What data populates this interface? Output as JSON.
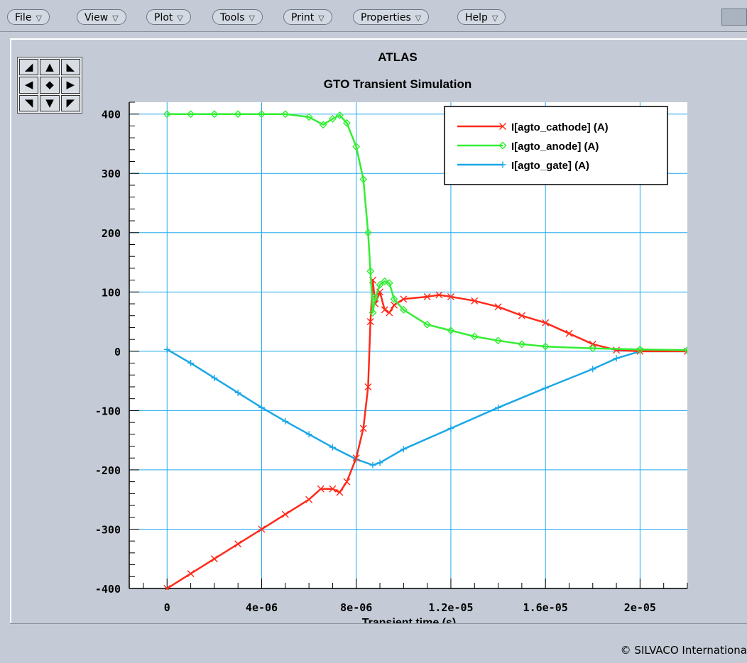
{
  "menu": [
    {
      "label": "File",
      "name": "file"
    },
    {
      "label": "View",
      "name": "view"
    },
    {
      "label": "Plot",
      "name": "plot"
    },
    {
      "label": "Tools",
      "name": "tools"
    },
    {
      "label": "Print",
      "name": "print"
    },
    {
      "label": "Properties",
      "name": "properties"
    },
    {
      "label": "Help",
      "name": "help"
    }
  ],
  "menu_arrow": "▽",
  "nav_pad": [
    {
      "glyph": "◢",
      "name": "pan-up-left-icon"
    },
    {
      "glyph": "▲",
      "name": "pan-up-icon"
    },
    {
      "glyph": "◣",
      "name": "pan-up-right-icon"
    },
    {
      "glyph": "◀",
      "name": "pan-left-icon"
    },
    {
      "glyph": "◆",
      "name": "pan-center-icon"
    },
    {
      "glyph": "▶",
      "name": "pan-right-icon"
    },
    {
      "glyph": "◥",
      "name": "pan-down-left-icon"
    },
    {
      "glyph": "▼",
      "name": "pan-down-icon"
    },
    {
      "glyph": "◤",
      "name": "pan-down-right-icon"
    }
  ],
  "status": {
    "copyright": "© SILVACO Internationa"
  },
  "colors": {
    "cathode": "#ff2a1a",
    "anode": "#33ee33",
    "gate": "#1aa7e6",
    "grid": "#22aaee"
  },
  "chart_data": {
    "type": "line",
    "title": "ATLAS",
    "subtitle": "GTO Transient Simulation",
    "xlabel": "Transient time (s)",
    "ylabel": "",
    "xlim": [
      -1.6e-06,
      2.2e-05
    ],
    "ylim": [
      -400,
      420
    ],
    "x_ticks": [
      0,
      4e-06,
      8e-06,
      1.2e-05,
      1.6e-05,
      2e-05
    ],
    "x_tick_labels": [
      "0",
      "4e-06",
      "8e-06",
      "1.2e-05",
      "1.6e-05",
      "2e-05"
    ],
    "y_ticks": [
      -400,
      -300,
      -200,
      -100,
      0,
      100,
      200,
      300,
      400
    ],
    "y_tick_labels": [
      "-400",
      "-300",
      "-200",
      "-100",
      "0",
      "100",
      "200",
      "300",
      "400"
    ],
    "grid": true,
    "legend_position": "top-right",
    "series": [
      {
        "name": "I[agto_cathode] (A)",
        "marker": "×",
        "points": [
          [
            0,
            -400
          ],
          [
            1e-06,
            -375
          ],
          [
            2e-06,
            -350
          ],
          [
            3e-06,
            -325
          ],
          [
            4e-06,
            -300
          ],
          [
            5e-06,
            -275
          ],
          [
            6e-06,
            -250
          ],
          [
            6.5e-06,
            -232
          ],
          [
            7e-06,
            -232
          ],
          [
            7.3e-06,
            -238
          ],
          [
            7.6e-06,
            -220
          ],
          [
            8e-06,
            -180
          ],
          [
            8.3e-06,
            -130
          ],
          [
            8.5e-06,
            -60
          ],
          [
            8.6e-06,
            50
          ],
          [
            8.7e-06,
            120
          ],
          [
            8.8e-06,
            80
          ],
          [
            9e-06,
            100
          ],
          [
            9.2e-06,
            70
          ],
          [
            9.4e-06,
            65
          ],
          [
            9.6e-06,
            78
          ],
          [
            1e-05,
            88
          ],
          [
            1.1e-05,
            92
          ],
          [
            1.15e-05,
            95
          ],
          [
            1.2e-05,
            92
          ],
          [
            1.3e-05,
            85
          ],
          [
            1.4e-05,
            75
          ],
          [
            1.5e-05,
            60
          ],
          [
            1.6e-05,
            48
          ],
          [
            1.7e-05,
            30
          ],
          [
            1.8e-05,
            12
          ],
          [
            1.9e-05,
            2
          ],
          [
            2e-05,
            0
          ],
          [
            2.2e-05,
            0
          ]
        ]
      },
      {
        "name": "I[agto_anode] (A)",
        "marker": "◇",
        "points": [
          [
            0,
            400
          ],
          [
            1e-06,
            400
          ],
          [
            2e-06,
            400
          ],
          [
            3e-06,
            400
          ],
          [
            4e-06,
            400
          ],
          [
            5e-06,
            400
          ],
          [
            6e-06,
            395
          ],
          [
            6.6e-06,
            382
          ],
          [
            7e-06,
            392
          ],
          [
            7.3e-06,
            398
          ],
          [
            7.6e-06,
            385
          ],
          [
            8e-06,
            345
          ],
          [
            8.3e-06,
            290
          ],
          [
            8.5e-06,
            200
          ],
          [
            8.6e-06,
            135
          ],
          [
            8.7e-06,
            65
          ],
          [
            8.8e-06,
            90
          ],
          [
            9e-06,
            112
          ],
          [
            9.2e-06,
            118
          ],
          [
            9.4e-06,
            115
          ],
          [
            9.6e-06,
            88
          ],
          [
            1e-05,
            70
          ],
          [
            1.1e-05,
            45
          ],
          [
            1.2e-05,
            35
          ],
          [
            1.3e-05,
            25
          ],
          [
            1.4e-05,
            18
          ],
          [
            1.5e-05,
            12
          ],
          [
            1.6e-05,
            8
          ],
          [
            1.8e-05,
            5
          ],
          [
            2e-05,
            3
          ],
          [
            2.2e-05,
            2
          ]
        ]
      },
      {
        "name": "I[agto_gate] (A)",
        "marker": "+",
        "points": [
          [
            0,
            3
          ],
          [
            1e-06,
            -20
          ],
          [
            2e-06,
            -45
          ],
          [
            3e-06,
            -70
          ],
          [
            4e-06,
            -95
          ],
          [
            5e-06,
            -118
          ],
          [
            6e-06,
            -140
          ],
          [
            7e-06,
            -162
          ],
          [
            8e-06,
            -182
          ],
          [
            8.7e-06,
            -192
          ],
          [
            9e-06,
            -188
          ],
          [
            1e-05,
            -165
          ],
          [
            1.2e-05,
            -130
          ],
          [
            1.4e-05,
            -95
          ],
          [
            1.6e-05,
            -62
          ],
          [
            1.8e-05,
            -30
          ],
          [
            1.9e-05,
            -12
          ],
          [
            2e-05,
            0
          ],
          [
            2.2e-05,
            0
          ]
        ]
      }
    ]
  }
}
